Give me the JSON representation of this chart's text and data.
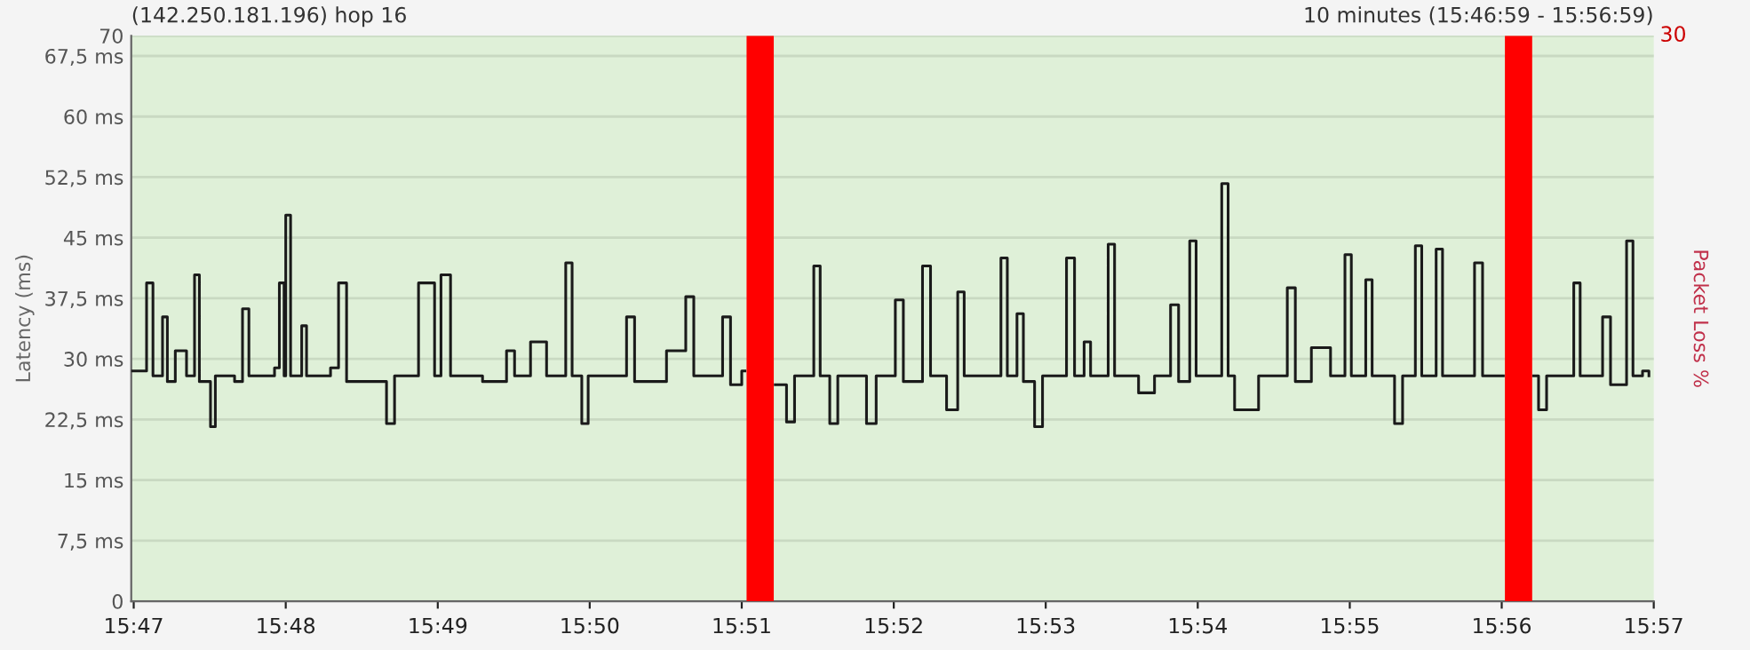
{
  "chart_data": {
    "type": "step",
    "title": "(142.250.181.196) hop 16",
    "subtitle": "10 minutes (15:46:59 - 15:56:59)",
    "ylabel": "Latency (ms)",
    "y2label": "Packet Loss %",
    "x": [
      15.78316,
      15.78474,
      15.78544,
      15.78649,
      15.78702,
      15.78789,
      15.78912,
      15.79,
      15.79053,
      15.79175,
      15.79228,
      15.79439,
      15.79526,
      15.79596,
      15.79877,
      15.7993,
      15.79982,
      15.8,
      15.80053,
      15.80175,
      15.80228,
      15.80491,
      15.80579,
      15.80667,
      15.81105,
      15.81193,
      15.81456,
      15.81632,
      15.81702,
      15.81807,
      15.82158,
      15.82421,
      15.82509,
      15.82684,
      15.8286,
      15.8307,
      15.8314,
      15.83246,
      15.83316,
      15.83561,
      15.83737,
      15.83825,
      15.84175,
      15.84386,
      15.84474,
      15.8479,
      15.84877,
      15.85,
      15.85035,
      15.85368,
      15.85491,
      15.85579,
      15.8579,
      15.8586,
      15.85965,
      15.86053,
      15.86368,
      15.86474,
      15.86684,
      15.86772,
      15.86982,
      15.8707,
      15.87246,
      15.87368,
      15.87439,
      15.87684,
      15.87842,
      15.87912,
      15.88018,
      15.88088,
      15.88211,
      15.88298,
      15.88561,
      15.88649,
      15.88754,
      15.88825,
      15.89018,
      15.89088,
      15.89351,
      15.89526,
      15.89702,
      15.8979,
      15.89912,
      15.89982,
      15.90263,
      15.90333,
      15.90404,
      15.90667,
      15.90982,
      15.9107,
      15.91246,
      15.91456,
      15.91614,
      15.91684,
      15.91842,
      15.91912,
      15.92158,
      15.92246,
      15.92386,
      15.92456,
      15.92614,
      15.92684,
      15.93035,
      15.93123,
      15.93316,
      15.93351,
      15.93684,
      15.93737,
      15.93825,
      15.94123,
      15.94193,
      15.94439,
      15.94526,
      15.94702,
      15.94772,
      15.94877,
      15.94947
    ],
    "series": [
      {
        "color": "#1a1a1a",
        "values": [
          28.5,
          39.4,
          27.9,
          35.2,
          27.2,
          31.0,
          27.9,
          40.4,
          27.2,
          21.6,
          27.9,
          27.2,
          36.2,
          27.9,
          28.9,
          39.4,
          27.9,
          47.8,
          27.9,
          34.1,
          27.9,
          28.9,
          39.4,
          27.2,
          22.0,
          27.9,
          39.4,
          27.9,
          40.4,
          27.9,
          27.2,
          31.0,
          27.9,
          32.1,
          27.9,
          41.9,
          27.9,
          22.0,
          27.9,
          27.9,
          35.2,
          27.2,
          31.0,
          37.7,
          27.9,
          35.2,
          26.8,
          28.5,
          null,
          26.8,
          22.2,
          27.9,
          41.5,
          27.9,
          22.0,
          27.9,
          22.0,
          27.9,
          37.3,
          27.2,
          41.5,
          27.9,
          23.7,
          38.3,
          27.9,
          27.9,
          42.5,
          27.9,
          35.6,
          27.2,
          21.6,
          27.9,
          42.5,
          27.9,
          32.1,
          27.9,
          44.2,
          27.9,
          25.8,
          27.9,
          36.7,
          27.2,
          44.6,
          27.9,
          51.7,
          27.9,
          23.7,
          27.9,
          38.8,
          27.2,
          31.4,
          27.9,
          42.9,
          27.9,
          39.8,
          27.9,
          22.0,
          27.9,
          44.0,
          27.9,
          43.6,
          27.9,
          41.9,
          27.9,
          27.9,
          null,
          27.9,
          23.7,
          27.9,
          39.4,
          27.9,
          35.2,
          26.8,
          44.6,
          27.9,
          28.5,
          27.9
        ]
      }
    ],
    "xlim": [
      15.78306,
      15.95
    ],
    "xticks": [
      {
        "value": 15.78333,
        "label": "15:47"
      },
      {
        "value": 15.8,
        "label": "15:48"
      },
      {
        "value": 15.81667,
        "label": "15:49"
      },
      {
        "value": 15.83333,
        "label": "15:50"
      },
      {
        "value": 15.85,
        "label": "15:51"
      },
      {
        "value": 15.86667,
        "label": "15:52"
      },
      {
        "value": 15.88333,
        "label": "15:53"
      },
      {
        "value": 15.9,
        "label": "15:54"
      },
      {
        "value": 15.91667,
        "label": "15:55"
      },
      {
        "value": 15.93333,
        "label": "15:56"
      },
      {
        "value": 15.95,
        "label": "15:57"
      }
    ],
    "ylim": [
      0,
      70
    ],
    "yticks": [
      0,
      {
        "value": 7.5,
        "label": "7,5 ms"
      },
      {
        "value": 15,
        "label": "15 ms"
      },
      {
        "value": 22.5,
        "label": "22,5 ms"
      },
      {
        "value": 30,
        "label": "30 ms"
      },
      {
        "value": 37.5,
        "label": "37,5 ms"
      },
      {
        "value": 45,
        "label": "45 ms"
      },
      {
        "value": 52.5,
        "label": "52,5 ms"
      },
      {
        "value": 60,
        "label": "60 ms"
      },
      {
        "value": 67.5,
        "label": "67,5 ms"
      },
      70
    ],
    "annotations": [
      "30"
    ],
    "bands": [
      {
        "axis": "x",
        "from": 15.85053,
        "to": 15.85351,
        "color": "#ff0000"
      },
      {
        "axis": "x",
        "from": 15.93368,
        "to": 15.93667,
        "color": "#ff0000"
      }
    ],
    "grid": "y",
    "line_style": "solid"
  }
}
